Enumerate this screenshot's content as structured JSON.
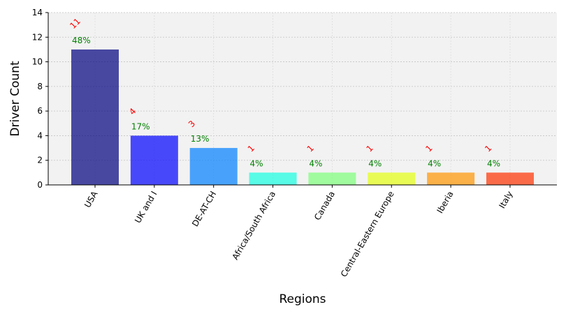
{
  "chart_data": {
    "type": "bar",
    "title": "",
    "xlabel": "Regions",
    "ylabel": "Driver Count",
    "categories": [
      "USA",
      "UK and I",
      "DE-AT-CH",
      "Africa/South Africa",
      "Canada",
      "Central-Eastern Europe",
      "Iberia",
      "Italy"
    ],
    "values": [
      11,
      4,
      3,
      1,
      1,
      1,
      1,
      1
    ],
    "count_labels": [
      "11",
      "4",
      "3",
      "1",
      "1",
      "1",
      "1",
      "1"
    ],
    "percent_labels": [
      "48%",
      "17%",
      "13%",
      "4%",
      "4%",
      "4%",
      "4%",
      "4%"
    ],
    "bar_colors": [
      "#00007f",
      "#0000ff",
      "#0080ff",
      "#15ffe1",
      "#7cff79",
      "#e4ff13",
      "#ff9400",
      "#ff3000"
    ],
    "ylim": [
      0,
      14
    ],
    "yticks": [
      0,
      2,
      4,
      6,
      8,
      10,
      12,
      14
    ],
    "grid": true,
    "count_label_color": "#ff0000",
    "percent_label_color": "#008000",
    "plot_background": "#f2f2f2"
  }
}
